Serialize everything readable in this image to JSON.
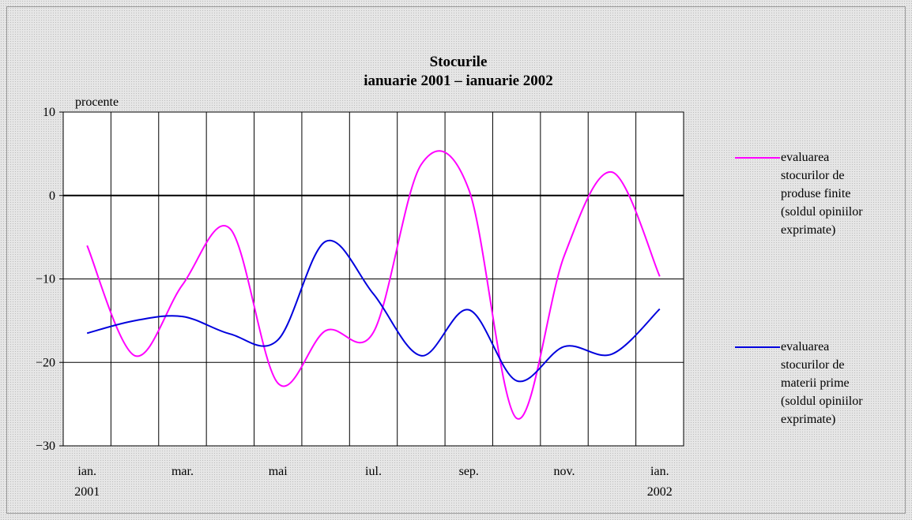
{
  "chart_data": {
    "type": "line",
    "title": "Stocurile",
    "subtitle": "ianuarie 2001 – ianuarie 2002",
    "y_label": "procente",
    "categories": [
      "ian.\n2001",
      null,
      "mar.",
      null,
      "mai",
      null,
      "iul.",
      null,
      "sep.",
      null,
      "nov.",
      null,
      "ian.\n2002"
    ],
    "series": [
      {
        "name": "evaluarea stocurilor de produse finite (soldul opiniilor exprimate)",
        "color": "#ff00ff",
        "values": [
          -6,
          -19.2,
          -10.7,
          -4,
          -22.5,
          -16.2,
          -16.4,
          3.7,
          0.7,
          -26.7,
          -7.2,
          2.8,
          -9.7
        ]
      },
      {
        "name": "evaluarea stocurilor de materii prime (soldul opiniilor exprimate)",
        "color": "#0000dd",
        "values": [
          -16.5,
          -15,
          -14.5,
          -16.6,
          -17.3,
          -5.5,
          -11.8,
          -19.2,
          -13.7,
          -22.2,
          -18.1,
          -19,
          -13.6
        ]
      }
    ],
    "ylim": [
      -30,
      10
    ],
    "yticks": [
      {
        "value": -30,
        "label": "−30"
      },
      {
        "value": -20,
        "label": "−20"
      },
      {
        "value": -10,
        "label": "−10"
      },
      0,
      10
    ],
    "grid": true,
    "legend": "right"
  }
}
